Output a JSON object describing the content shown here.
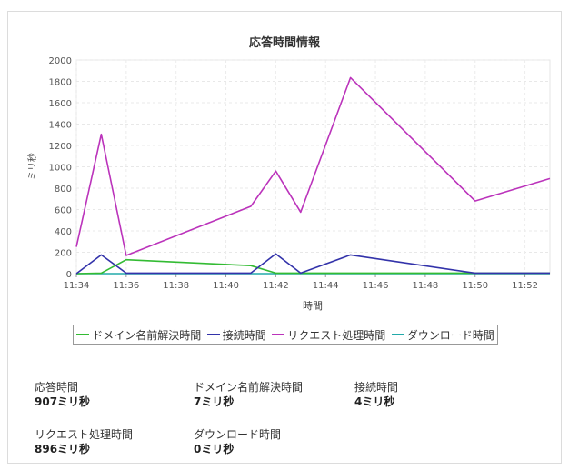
{
  "chart_data": {
    "type": "line",
    "title": "応答時間情報",
    "xlabel": "時間",
    "ylabel": "ミリ秒",
    "ylim": [
      0,
      2000
    ],
    "yticks": [
      0,
      200,
      400,
      600,
      800,
      1000,
      1200,
      1400,
      1600,
      1800,
      2000
    ],
    "xticks": [
      "11:34",
      "11:36",
      "11:38",
      "11:40",
      "11:42",
      "11:44",
      "11:46",
      "11:48",
      "11:50",
      "11:52"
    ],
    "xlim_minutes": [
      34,
      53
    ],
    "grid": true,
    "legend_position": "bottom",
    "series": [
      {
        "name": "ドメイン名前解決時間",
        "color": "#33bb33",
        "points": [
          [
            "11:34",
            0
          ],
          [
            "11:35",
            5
          ],
          [
            "11:36",
            130
          ],
          [
            "11:41",
            75
          ],
          [
            "11:42",
            5
          ],
          [
            "11:43",
            5
          ],
          [
            "11:45",
            5
          ],
          [
            "11:50",
            5
          ],
          [
            "11:53",
            5
          ]
        ]
      },
      {
        "name": "接続時間",
        "color": "#3333aa",
        "points": [
          [
            "11:34",
            0
          ],
          [
            "11:35",
            175
          ],
          [
            "11:36",
            5
          ],
          [
            "11:41",
            5
          ],
          [
            "11:42",
            185
          ],
          [
            "11:43",
            5
          ],
          [
            "11:45",
            175
          ],
          [
            "11:50",
            5
          ],
          [
            "11:53",
            5
          ]
        ]
      },
      {
        "name": "リクエスト処理時間",
        "color": "#bb33bb",
        "points": [
          [
            "11:34",
            250
          ],
          [
            "11:35",
            1305
          ],
          [
            "11:36",
            170
          ],
          [
            "11:41",
            630
          ],
          [
            "11:42",
            960
          ],
          [
            "11:43",
            575
          ],
          [
            "11:45",
            1835
          ],
          [
            "11:50",
            680
          ],
          [
            "11:53",
            890
          ]
        ]
      },
      {
        "name": "ダウンロード時間",
        "color": "#22aaaa",
        "points": [
          [
            "11:34",
            0
          ],
          [
            "11:35",
            0
          ],
          [
            "11:36",
            0
          ],
          [
            "11:41",
            0
          ],
          [
            "11:42",
            0
          ],
          [
            "11:43",
            0
          ],
          [
            "11:45",
            0
          ],
          [
            "11:50",
            0
          ],
          [
            "11:53",
            0
          ]
        ]
      }
    ]
  },
  "stats": [
    {
      "label": "応答時間",
      "value": "907ミリ秒"
    },
    {
      "label": "ドメイン名前解決時間",
      "value": "7ミリ秒"
    },
    {
      "label": "接続時間",
      "value": "4ミリ秒"
    },
    {
      "label": "リクエスト処理時間",
      "value": "896ミリ秒"
    },
    {
      "label": "ダウンロード時間",
      "value": "0ミリ秒"
    }
  ]
}
